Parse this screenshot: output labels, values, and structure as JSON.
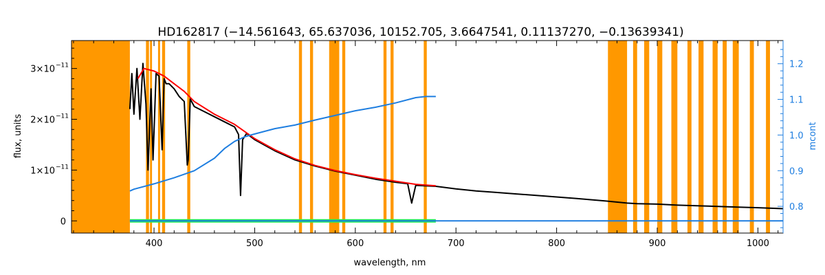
{
  "chart_data": {
    "type": "line",
    "title": "HD162817   (−14.561643, 65.637036, 10152.705, 3.6647541, 0.11137270, −0.13639341)",
    "xlabel": "wavelength, nm",
    "ylabel": "flux, units",
    "y2label": "mcont",
    "xlim": [
      318,
      1025
    ],
    "ylim": [
      -2.4e-12,
      3.55e-11
    ],
    "y2lim": [
      0.725,
      1.265
    ],
    "x_ticks": [
      400,
      500,
      600,
      700,
      800,
      900,
      1000
    ],
    "x_tick_labels": [
      "400",
      "500",
      "600",
      "700",
      "800",
      "900",
      "1000"
    ],
    "y_ticks": [
      0,
      1e-11,
      2e-11,
      3e-11
    ],
    "y_tick_labels": [
      "0",
      "1×10",
      "2×10",
      "3×10"
    ],
    "y_tick_exponent": "−11",
    "y2_ticks": [
      0.8,
      0.9,
      1.0,
      1.1,
      1.2
    ],
    "y2_tick_labels": [
      "0.8",
      "0.9",
      "1.0",
      "1.1",
      "1.2"
    ],
    "masked_regions_nm": [
      [
        318,
        376
      ],
      [
        392,
        395
      ],
      [
        396,
        398
      ],
      [
        404,
        406
      ],
      [
        408,
        411
      ],
      [
        433,
        436
      ],
      [
        544,
        547
      ],
      [
        555,
        558
      ],
      [
        574,
        584
      ],
      [
        587,
        590
      ],
      [
        628,
        631
      ],
      [
        635,
        638
      ],
      [
        668,
        671
      ],
      [
        851,
        870
      ],
      [
        876,
        880
      ],
      [
        887,
        892
      ],
      [
        900,
        905
      ],
      [
        914,
        920
      ],
      [
        930,
        934
      ],
      [
        941,
        946
      ],
      [
        955,
        960
      ],
      [
        965,
        969
      ],
      [
        975,
        981
      ],
      [
        992,
        996
      ],
      [
        1008,
        1012
      ]
    ],
    "series": [
      {
        "kind": "observed flux",
        "color": "#000000",
        "x": [
          376,
          378,
          380,
          383,
          386,
          389,
          392,
          394,
          397,
          399,
          402,
          405,
          408,
          410,
          412,
          415,
          420,
          425,
          430,
          433,
          434,
          436,
          440,
          450,
          460,
          470,
          480,
          484,
          486,
          488,
          492,
          500,
          520,
          540,
          560,
          580,
          600,
          620,
          640,
          652,
          656,
          660,
          680,
          700,
          720,
          740,
          760,
          780,
          800,
          820,
          850,
          870,
          880,
          900,
          920,
          950,
          980,
          1000,
          1025
        ],
        "y": [
          2.2e-11,
          2.9e-11,
          2.1e-11,
          3e-11,
          2e-11,
          3.1e-11,
          2.3e-11,
          1e-11,
          2.6e-11,
          1.2e-11,
          2.9e-11,
          2.85e-11,
          1.4e-11,
          2.8e-11,
          2.7e-11,
          2.7e-11,
          2.6e-11,
          2.45e-11,
          2.35e-11,
          1.1e-11,
          1.2e-11,
          2.4e-11,
          2.25e-11,
          2.15e-11,
          2.05e-11,
          1.95e-11,
          1.85e-11,
          1.7e-11,
          5e-12,
          1.6e-11,
          1.72e-11,
          1.6e-11,
          1.38e-11,
          1.2e-11,
          1.08e-11,
          9.8e-12,
          9e-12,
          8.2e-12,
          7.6e-12,
          7.3e-12,
          3.5e-12,
          7e-12,
          6.8e-12,
          6.3e-12,
          5.9e-12,
          5.6e-12,
          5.3e-12,
          5e-12,
          4.7e-12,
          4.4e-12,
          3.9e-12,
          3.5e-12,
          3.4e-12,
          3.3e-12,
          3.1e-12,
          2.9e-12,
          2.7e-12,
          2.6e-12,
          2.4e-12
        ]
      },
      {
        "kind": "model fit",
        "color": "#ff0000",
        "x": [
          384,
          390,
          400,
          410,
          420,
          430,
          440,
          460,
          480,
          500,
          520,
          540,
          560,
          580,
          600,
          620,
          640,
          660,
          680
        ],
        "y": [
          2.8e-11,
          3e-11,
          2.95e-11,
          2.85e-11,
          2.7e-11,
          2.55e-11,
          2.35e-11,
          2.1e-11,
          1.9e-11,
          1.62e-11,
          1.4e-11,
          1.22e-11,
          1.09e-11,
          9.9e-12,
          9.1e-12,
          8.4e-12,
          7.8e-12,
          7.2e-12,
          6.9e-12
        ]
      },
      {
        "kind": "mcont (right axis)",
        "color": "#1e7ee0",
        "axis": "right",
        "x": [
          376,
          380,
          400,
          420,
          440,
          460,
          470,
          480,
          490,
          500,
          520,
          540,
          560,
          580,
          600,
          620,
          640,
          660,
          670,
          680
        ],
        "y": [
          0.843,
          0.848,
          0.863,
          0.88,
          0.9,
          0.935,
          0.962,
          0.982,
          0.995,
          1.003,
          1.018,
          1.028,
          1.042,
          1.055,
          1.068,
          1.078,
          1.09,
          1.105,
          1.108,
          1.108
        ]
      },
      {
        "kind": "residuals",
        "color": "#21ee55",
        "x": [
          376,
          380,
          390,
          400,
          410,
          420,
          440,
          460,
          480,
          500,
          540,
          580,
          620,
          660,
          680
        ],
        "y": [
          0,
          0,
          0,
          0,
          0,
          0,
          0,
          0,
          0,
          0,
          0,
          0,
          0,
          0,
          0
        ]
      },
      {
        "kind": "baseline",
        "color": "#1e7ee0",
        "x": [
          376,
          1025
        ],
        "y": [
          0,
          0
        ]
      }
    ],
    "colors": {
      "mask": "#ff9800",
      "flux": "#000000",
      "model": "#ff0000",
      "mcont": "#1e7ee0",
      "residual": "#21ee55",
      "frame": "#000000",
      "right_axis": "#1e7ee0"
    }
  }
}
